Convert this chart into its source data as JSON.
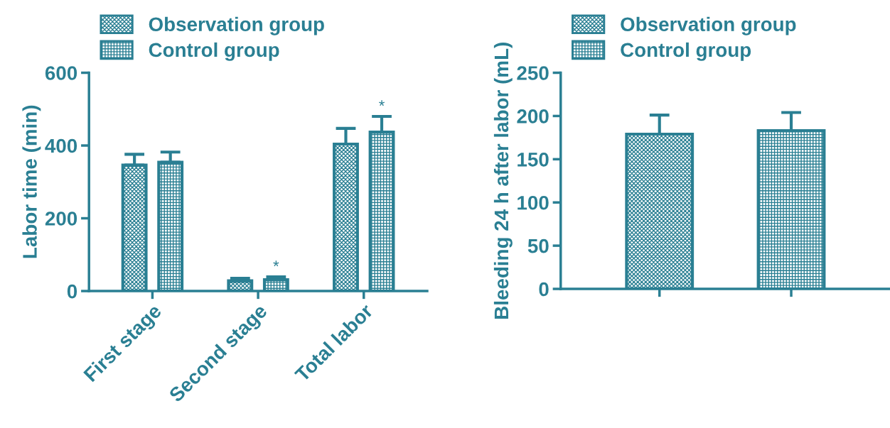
{
  "chart_data": [
    {
      "type": "bar",
      "ylabel": "Labor time (min)",
      "categories": [
        "First stage",
        "Second stage",
        "Total labor"
      ],
      "series": [
        {
          "name": "Observation group",
          "color": "#2a7f93",
          "values": [
            346,
            28,
            404
          ],
          "errors": [
            [
              346,
              376
            ],
            [
              28,
              35
            ],
            [
              404,
              447
            ]
          ]
        },
        {
          "name": "Control group",
          "color": "#2a7f93",
          "values": [
            354,
            31,
            437
          ],
          "errors": [
            [
              354,
              382
            ],
            [
              31,
              39
            ],
            [
              437,
              480
            ]
          ]
        }
      ],
      "ylim": [
        0,
        600
      ],
      "yticks": [
        0,
        200,
        400,
        600
      ],
      "legend": "top left",
      "grid": false,
      "annotations": [
        "*",
        "*"
      ]
    },
    {
      "type": "bar",
      "ylabel": "Bleeding 24 h after labor (mL)",
      "categories": [
        null,
        null
      ],
      "series": [
        {
          "name": "Observation group",
          "color": "#2a7f93",
          "values": [
            179,
            null
          ],
          "errors": [
            [
              179,
              201
            ],
            null
          ]
        },
        {
          "name": "Control group",
          "color": "#2a7f93",
          "values": [
            null,
            183
          ],
          "errors": [
            null,
            [
              183,
              204
            ]
          ]
        }
      ],
      "ylim": [
        0,
        250
      ],
      "yticks": [
        0,
        50,
        100,
        150,
        200,
        250
      ],
      "legend": "top left",
      "grid": false
    }
  ]
}
